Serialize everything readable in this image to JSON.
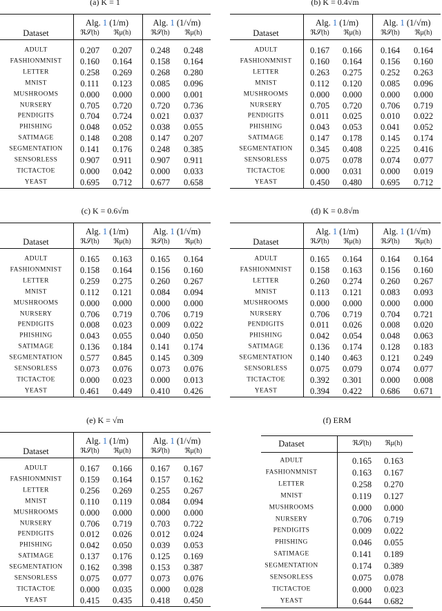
{
  "datasets": [
    "ADULT",
    "FASHIONMNIST",
    "LETTER",
    "MNIST",
    "MUSHROOMS",
    "NURSERY",
    "PENDIGITS",
    "PHISHING",
    "SATIMAGE",
    "SEGMENTATION",
    "SENSORLESS",
    "TICTACTOE",
    "YEAST"
  ],
  "dataset_header": "Dataset",
  "metrics": [
    "ℜ𝒮(h)",
    "ℜμ(h)"
  ],
  "alg": "Alg.",
  "ref": "1",
  "args": [
    "(1/m)",
    "(1/√m)"
  ],
  "tables": [
    {
      "caption": "(a) K = 1",
      "rows": [
        [
          "0.207",
          "0.207",
          "0.248",
          "0.248"
        ],
        [
          "0.160",
          "0.164",
          "0.158",
          "0.164"
        ],
        [
          "0.258",
          "0.269",
          "0.268",
          "0.280"
        ],
        [
          "0.111",
          "0.123",
          "0.085",
          "0.096"
        ],
        [
          "0.000",
          "0.000",
          "0.000",
          "0.001"
        ],
        [
          "0.705",
          "0.720",
          "0.720",
          "0.736"
        ],
        [
          "0.704",
          "0.724",
          "0.021",
          "0.037"
        ],
        [
          "0.048",
          "0.052",
          "0.038",
          "0.055"
        ],
        [
          "0.148",
          "0.208",
          "0.147",
          "0.207"
        ],
        [
          "0.141",
          "0.176",
          "0.248",
          "0.385"
        ],
        [
          "0.907",
          "0.911",
          "0.907",
          "0.911"
        ],
        [
          "0.000",
          "0.042",
          "0.000",
          "0.033"
        ],
        [
          "0.695",
          "0.712",
          "0.677",
          "0.658"
        ]
      ]
    },
    {
      "caption": "(b) K = 0.4√m",
      "rows": [
        [
          "0.167",
          "0.166",
          "0.164",
          "0.164"
        ],
        [
          "0.160",
          "0.164",
          "0.156",
          "0.160"
        ],
        [
          "0.263",
          "0.275",
          "0.252",
          "0.263"
        ],
        [
          "0.112",
          "0.120",
          "0.085",
          "0.096"
        ],
        [
          "0.000",
          "0.000",
          "0.000",
          "0.000"
        ],
        [
          "0.705",
          "0.720",
          "0.706",
          "0.719"
        ],
        [
          "0.011",
          "0.025",
          "0.010",
          "0.022"
        ],
        [
          "0.043",
          "0.053",
          "0.041",
          "0.052"
        ],
        [
          "0.147",
          "0.178",
          "0.145",
          "0.174"
        ],
        [
          "0.345",
          "0.408",
          "0.225",
          "0.416"
        ],
        [
          "0.075",
          "0.078",
          "0.074",
          "0.077"
        ],
        [
          "0.000",
          "0.031",
          "0.000",
          "0.019"
        ],
        [
          "0.450",
          "0.480",
          "0.695",
          "0.712"
        ]
      ]
    },
    {
      "caption": "(c) K = 0.6√m",
      "rows": [
        [
          "0.165",
          "0.163",
          "0.165",
          "0.164"
        ],
        [
          "0.158",
          "0.164",
          "0.156",
          "0.160"
        ],
        [
          "0.259",
          "0.275",
          "0.260",
          "0.267"
        ],
        [
          "0.112",
          "0.121",
          "0.084",
          "0.094"
        ],
        [
          "0.000",
          "0.000",
          "0.000",
          "0.000"
        ],
        [
          "0.706",
          "0.719",
          "0.706",
          "0.719"
        ],
        [
          "0.008",
          "0.023",
          "0.009",
          "0.022"
        ],
        [
          "0.043",
          "0.055",
          "0.040",
          "0.050"
        ],
        [
          "0.136",
          "0.184",
          "0.141",
          "0.174"
        ],
        [
          "0.577",
          "0.845",
          "0.145",
          "0.309"
        ],
        [
          "0.073",
          "0.076",
          "0.073",
          "0.076"
        ],
        [
          "0.000",
          "0.023",
          "0.000",
          "0.013"
        ],
        [
          "0.461",
          "0.449",
          "0.410",
          "0.426"
        ]
      ]
    },
    {
      "caption": "(d) K = 0.8√m",
      "rows": [
        [
          "0.165",
          "0.164",
          "0.164",
          "0.164"
        ],
        [
          "0.158",
          "0.163",
          "0.156",
          "0.160"
        ],
        [
          "0.260",
          "0.274",
          "0.260",
          "0.267"
        ],
        [
          "0.113",
          "0.121",
          "0.083",
          "0.093"
        ],
        [
          "0.000",
          "0.000",
          "0.000",
          "0.000"
        ],
        [
          "0.706",
          "0.719",
          "0.704",
          "0.721"
        ],
        [
          "0.011",
          "0.026",
          "0.008",
          "0.020"
        ],
        [
          "0.042",
          "0.054",
          "0.048",
          "0.063"
        ],
        [
          "0.136",
          "0.174",
          "0.128",
          "0.183"
        ],
        [
          "0.140",
          "0.463",
          "0.121",
          "0.249"
        ],
        [
          "0.075",
          "0.079",
          "0.074",
          "0.077"
        ],
        [
          "0.392",
          "0.301",
          "0.000",
          "0.008"
        ],
        [
          "0.394",
          "0.422",
          "0.686",
          "0.671"
        ]
      ]
    },
    {
      "caption": "(e) K = √m",
      "rows": [
        [
          "0.167",
          "0.166",
          "0.167",
          "0.167"
        ],
        [
          "0.159",
          "0.164",
          "0.157",
          "0.162"
        ],
        [
          "0.256",
          "0.269",
          "0.255",
          "0.267"
        ],
        [
          "0.110",
          "0.119",
          "0.084",
          "0.094"
        ],
        [
          "0.000",
          "0.000",
          "0.000",
          "0.000"
        ],
        [
          "0.706",
          "0.719",
          "0.703",
          "0.722"
        ],
        [
          "0.012",
          "0.026",
          "0.012",
          "0.024"
        ],
        [
          "0.042",
          "0.050",
          "0.039",
          "0.053"
        ],
        [
          "0.137",
          "0.176",
          "0.125",
          "0.169"
        ],
        [
          "0.162",
          "0.398",
          "0.153",
          "0.387"
        ],
        [
          "0.075",
          "0.077",
          "0.073",
          "0.076"
        ],
        [
          "0.000",
          "0.035",
          "0.000",
          "0.028"
        ],
        [
          "0.415",
          "0.435",
          "0.418",
          "0.450"
        ]
      ]
    },
    {
      "caption": "(f) ERM",
      "rows": [
        [
          "0.165",
          "0.163"
        ],
        [
          "0.163",
          "0.167"
        ],
        [
          "0.258",
          "0.270"
        ],
        [
          "0.119",
          "0.127"
        ],
        [
          "0.000",
          "0.000"
        ],
        [
          "0.706",
          "0.719"
        ],
        [
          "0.009",
          "0.022"
        ],
        [
          "0.046",
          "0.055"
        ],
        [
          "0.141",
          "0.189"
        ],
        [
          "0.174",
          "0.389"
        ],
        [
          "0.075",
          "0.078"
        ],
        [
          "0.000",
          "0.023"
        ],
        [
          "0.644",
          "0.682"
        ]
      ]
    }
  ]
}
